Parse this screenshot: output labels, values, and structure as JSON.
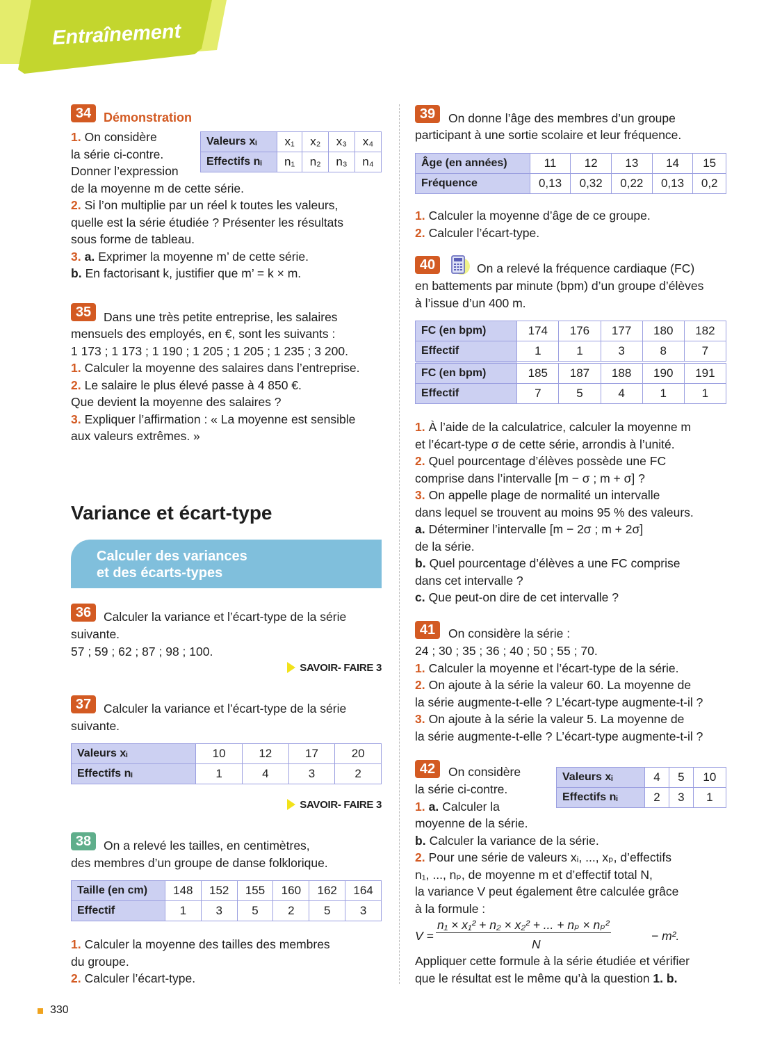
{
  "header": {
    "title": "Entraînement",
    "colors": {
      "light": "#e4ec6c",
      "dark": "#c3d62e"
    }
  },
  "accent": "#d35a22",
  "ex34": {
    "number": "34",
    "title": "Démonstration",
    "lines": [
      {
        "n": "1.",
        "t": "On considère"
      },
      "la série ci-contre.",
      "Donner l’expression",
      "de la moyenne m de cette série.",
      {
        "n": "2.",
        "t": "Si l’on multiplie par un réel k toutes les valeurs,"
      },
      "quelle est la série étudiée ? Présenter les résultats",
      "sous forme de tableau.",
      {
        "n": "3.",
        "b": "a.",
        "t": "Exprimer la moyenne m’ de cette série."
      },
      {
        "b": "b.",
        "t": "En factorisant k, justifier que m’ = k × m."
      }
    ],
    "table": [
      [
        "Valeurs xᵢ",
        "x₁",
        "x₂",
        "x₃",
        "x₄"
      ],
      [
        "Effectifs nᵢ",
        "n₁",
        "n₂",
        "n₃",
        "n₄"
      ]
    ]
  },
  "ex35": {
    "number": "35",
    "intro": "Dans une très petite entreprise, les salaires",
    "lines": [
      "mensuels des employés, en €, sont les suivants :",
      "1 173 ; 1 173 ; 1 190 ; 1 205 ; 1 205 ; 1 235 ; 3 200.",
      {
        "n": "1.",
        "t": "Calculer la moyenne des salaires dans l’entreprise."
      },
      {
        "n": "2.",
        "t": "Le salaire le plus élevé passe à 4 850 €."
      },
      "Que devient la moyenne des salaires ?",
      {
        "n": "3.",
        "t": "Expliquer l’affirmation : « La moyenne est sensible"
      },
      "aux valeurs extrêmes. »"
    ]
  },
  "section": {
    "title": "Variance et écart-type",
    "box_line1": "Calculer des variances",
    "box_line2": "et des écarts-types",
    "box_color": "#80bfdc"
  },
  "ex36": {
    "number": "36",
    "intro": "Calculer la variance et l’écart-type de la série",
    "lines": [
      "suivante.",
      "57 ; 59 ; 62 ; 87 ; 98 ; 100."
    ],
    "savoir": "SAVOIR- FAIRE 3"
  },
  "ex37": {
    "number": "37",
    "intro": "Calculer la variance et l’écart-type de la série",
    "lines": [
      "suivante."
    ],
    "table": [
      [
        "Valeurs xᵢ",
        "10",
        "12",
        "17",
        "20"
      ],
      [
        "Effectifs nᵢ",
        "1",
        "4",
        "3",
        "2"
      ]
    ],
    "savoir": "SAVOIR- FAIRE 3"
  },
  "ex38": {
    "number": "38",
    "intro": "On a relevé les tailles, en centimètres,",
    "lines": [
      "des membres d’un groupe de danse folklorique."
    ],
    "table": [
      [
        "Taille (en cm)",
        "148",
        "152",
        "155",
        "160",
        "162",
        "164"
      ],
      [
        "Effectif",
        "1",
        "3",
        "5",
        "2",
        "5",
        "3"
      ]
    ],
    "questions": [
      {
        "n": "1.",
        "t": "Calculer la moyenne des tailles des membres"
      },
      "du groupe.",
      {
        "n": "2.",
        "t": "Calculer l’écart-type."
      }
    ]
  },
  "ex39": {
    "number": "39",
    "intro": "On donne l’âge des membres d’un groupe",
    "lines": [
      "participant à une sortie scolaire et leur fréquence."
    ],
    "table": [
      [
        "Âge (en années)",
        "11",
        "12",
        "13",
        "14",
        "15"
      ],
      [
        "Fréquence",
        "0,13",
        "0,32",
        "0,22",
        "0,13",
        "0,2"
      ]
    ],
    "questions": [
      {
        "n": "1.",
        "t": "Calculer la moyenne d’âge de ce groupe."
      },
      {
        "n": "2.",
        "t": "Calculer l’écart-type."
      }
    ]
  },
  "ex40": {
    "number": "40",
    "icon": "calculator-icon",
    "intro": "On a relevé la fréquence cardiaque (FC)",
    "lines": [
      "en battements par minute (bpm) d’un groupe d’élèves",
      "à l’issue d’un 400 m."
    ],
    "table": [
      [
        "FC (en bpm)",
        "174",
        "176",
        "177",
        "180",
        "182"
      ],
      [
        "Effectif",
        "1",
        "1",
        "3",
        "8",
        "7"
      ],
      [
        "FC (en bpm)",
        "185",
        "187",
        "188",
        "190",
        "191"
      ],
      [
        "Effectif",
        "7",
        "5",
        "4",
        "1",
        "1"
      ]
    ],
    "questions": [
      {
        "n": "1.",
        "t": "À l’aide de la calculatrice, calculer la moyenne m"
      },
      "et l’écart-type σ de cette série, arrondis à l’unité.",
      {
        "n": "2.",
        "t": "Quel pourcentage d’élèves possède une FC"
      },
      "comprise dans l’intervalle [m − σ ; m + σ] ?",
      {
        "n": "3.",
        "t": "On appelle plage de normalité un intervalle"
      },
      "dans lequel se trouvent au moins 95 % des valeurs.",
      {
        "b": "a.",
        "t": "Déterminer l’intervalle [m − 2σ ; m + 2σ]"
      },
      "de la série.",
      {
        "b": "b.",
        "t": "Quel pourcentage d’élèves a une FC comprise"
      },
      "dans cet intervalle ?",
      {
        "b": "c.",
        "t": "Que peut-on dire de cet intervalle ?"
      }
    ]
  },
  "ex41": {
    "number": "41",
    "intro": "On considère la série :",
    "lines": [
      "24 ; 30 ; 35 ; 36 ; 40 ; 50 ; 55 ; 70.",
      {
        "n": "1.",
        "t": "Calculer la moyenne et l’écart-type de la série."
      },
      {
        "n": "2.",
        "t": "On ajoute à la série la valeur 60. La moyenne de"
      },
      "la série augmente-t-elle ? L’écart-type augmente-t-il ?",
      {
        "n": "3.",
        "t": "On ajoute à la série la valeur 5. La moyenne de"
      },
      "la série augmente-t-elle ? L’écart-type augmente-t-il ?"
    ]
  },
  "ex42": {
    "number": "42",
    "intro": "On considère",
    "lines": [
      "la série ci-contre.",
      {
        "n": "1.",
        "b": "a.",
        "t": "Calculer la"
      },
      "moyenne de la série.",
      {
        "b": "b.",
        "t": "Calculer la variance de la série."
      },
      {
        "n": "2.",
        "t": "Pour une série de valeurs xᵢ, ..., xₚ, d’effectifs"
      },
      "n₁, ..., nₚ, de moyenne m et d’effectif total N,",
      "la variance V peut également être calculée grâce",
      "à la formule :"
    ],
    "table": [
      [
        "Valeurs xᵢ",
        "4",
        "5",
        "10"
      ],
      [
        "Effectifs nᵢ",
        "2",
        "3",
        "1"
      ]
    ],
    "formula": {
      "lhs": "V =",
      "numerator": "n₁ × x₁² + n₂ × x₂² + ... + nₚ × nₚ²",
      "denominator": "N",
      "rhs": "− m²."
    },
    "after": [
      "Appliquer cette formule à la série étudiée et vérifier",
      {
        "t": "que le résultat est le même qu’à la question ",
        "b2": "1. b."
      }
    ]
  },
  "footer": {
    "page": "330"
  }
}
